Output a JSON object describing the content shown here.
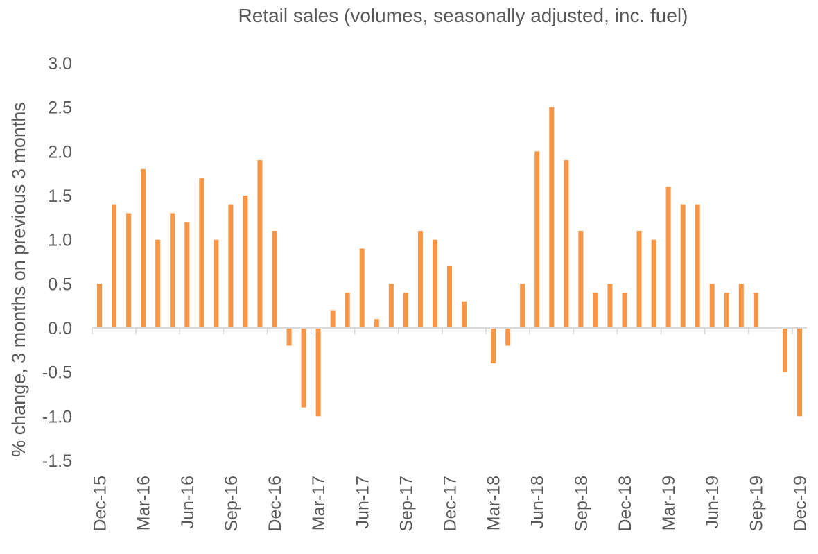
{
  "chart_data": {
    "type": "bar",
    "title": "Retail sales (volumes, seasonally adjusted, inc. fuel)",
    "ylabel": "% change, 3 months on previous 3 months",
    "xlabel": "",
    "ylim": [
      -1.5,
      3.0
    ],
    "yticks": [
      "3.0",
      "2.5",
      "2.0",
      "1.5",
      "1.0",
      "0.5",
      "0.0",
      "-0.5",
      "-1.0",
      "-1.5"
    ],
    "ytick_values": [
      3.0,
      2.5,
      2.0,
      1.5,
      1.0,
      0.5,
      0.0,
      -0.5,
      -1.0,
      -1.5
    ],
    "xtick_labels": [
      "Dec-15",
      "Mar-16",
      "Jun-16",
      "Sep-16",
      "Dec-16",
      "Mar-17",
      "Jun-17",
      "Sep-17",
      "Dec-17",
      "Mar-18",
      "Jun-18",
      "Sep-18",
      "Dec-18",
      "Mar-19",
      "Jun-19",
      "Sep-19",
      "Dec-19"
    ],
    "categories": [
      "Dec-15",
      "Jan-16",
      "Feb-16",
      "Mar-16",
      "Apr-16",
      "May-16",
      "Jun-16",
      "Jul-16",
      "Aug-16",
      "Sep-16",
      "Oct-16",
      "Nov-16",
      "Dec-16",
      "Jan-17",
      "Feb-17",
      "Mar-17",
      "Apr-17",
      "May-17",
      "Jun-17",
      "Jul-17",
      "Aug-17",
      "Sep-17",
      "Oct-17",
      "Nov-17",
      "Dec-17",
      "Jan-18",
      "Feb-18",
      "Mar-18",
      "Apr-18",
      "May-18",
      "Jun-18",
      "Jul-18",
      "Aug-18",
      "Sep-18",
      "Oct-18",
      "Nov-18",
      "Dec-18",
      "Jan-19",
      "Feb-19",
      "Mar-19",
      "Apr-19",
      "May-19",
      "Jun-19",
      "Jul-19",
      "Aug-19",
      "Sep-19",
      "Oct-19",
      "Nov-19",
      "Dec-19"
    ],
    "values": [
      0.5,
      1.4,
      1.3,
      1.8,
      1.0,
      1.3,
      1.2,
      1.7,
      1.0,
      1.4,
      1.5,
      1.9,
      1.1,
      -0.2,
      -0.9,
      -1.0,
      0.2,
      0.4,
      0.9,
      0.1,
      0.5,
      0.4,
      1.1,
      1.0,
      0.7,
      0.3,
      0.0,
      -0.4,
      -0.2,
      0.5,
      2.0,
      2.5,
      1.9,
      1.1,
      0.4,
      0.5,
      0.4,
      1.1,
      1.0,
      1.6,
      1.4,
      1.4,
      0.5,
      0.4,
      0.5,
      0.4,
      0.0,
      -0.5,
      -1.0
    ],
    "grid": false,
    "legend": "none",
    "bar_color": "#F79646",
    "axis_color": "#D9D9D9",
    "text_color": "#595959"
  }
}
